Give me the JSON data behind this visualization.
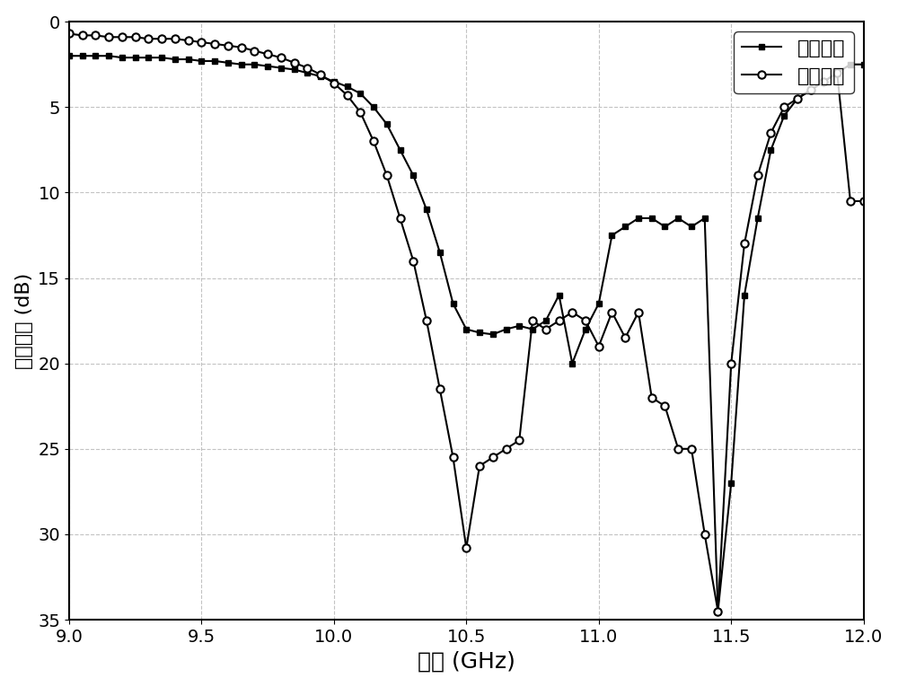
{
  "xlabel": "频率 (GHz)",
  "ylabel": "回波损耗 (dB)",
  "xlim": [
    9.0,
    12.0
  ],
  "ylim": [
    35,
    0
  ],
  "xticks": [
    9.0,
    9.5,
    10.0,
    10.5,
    11.0,
    11.5,
    12.0
  ],
  "yticks": [
    0,
    5,
    10,
    15,
    20,
    25,
    30,
    35
  ],
  "legend_labels": [
    "测试结果",
    "仿真结果"
  ],
  "background_color": "#ffffff",
  "grid_color": "#aaaaaa",
  "line_color": "#000000",
  "measured_x": [
    9.0,
    9.05,
    9.1,
    9.15,
    9.2,
    9.25,
    9.3,
    9.35,
    9.4,
    9.45,
    9.5,
    9.55,
    9.6,
    9.65,
    9.7,
    9.75,
    9.8,
    9.85,
    9.9,
    9.95,
    10.0,
    10.05,
    10.1,
    10.15,
    10.2,
    10.25,
    10.3,
    10.35,
    10.4,
    10.45,
    10.5,
    10.55,
    10.6,
    10.65,
    10.7,
    10.75,
    10.8,
    10.85,
    10.9,
    10.95,
    11.0,
    11.05,
    11.1,
    11.15,
    11.2,
    11.25,
    11.3,
    11.35,
    11.4,
    11.45,
    11.5,
    11.55,
    11.6,
    11.65,
    11.7,
    11.75,
    11.8,
    11.85,
    11.9,
    11.95,
    12.0
  ],
  "measured_y": [
    2.0,
    2.0,
    2.0,
    2.0,
    2.1,
    2.1,
    2.1,
    2.1,
    2.2,
    2.2,
    2.3,
    2.3,
    2.4,
    2.5,
    2.5,
    2.6,
    2.7,
    2.8,
    3.0,
    3.2,
    3.5,
    3.8,
    4.2,
    5.0,
    6.0,
    7.5,
    9.0,
    11.0,
    13.5,
    16.5,
    18.0,
    18.2,
    18.3,
    18.0,
    17.8,
    18.0,
    17.5,
    16.0,
    20.0,
    18.0,
    16.5,
    12.5,
    12.0,
    11.5,
    11.5,
    12.0,
    11.5,
    12.0,
    11.5,
    34.5,
    27.0,
    16.0,
    11.5,
    7.5,
    5.5,
    4.5,
    4.0,
    3.5,
    3.0,
    2.5,
    2.5
  ],
  "simulated_x": [
    9.0,
    9.05,
    9.1,
    9.15,
    9.2,
    9.25,
    9.3,
    9.35,
    9.4,
    9.45,
    9.5,
    9.55,
    9.6,
    9.65,
    9.7,
    9.75,
    9.8,
    9.85,
    9.9,
    9.95,
    10.0,
    10.05,
    10.1,
    10.15,
    10.2,
    10.25,
    10.3,
    10.35,
    10.4,
    10.45,
    10.5,
    10.55,
    10.6,
    10.65,
    10.7,
    10.75,
    10.8,
    10.85,
    10.9,
    10.95,
    11.0,
    11.05,
    11.1,
    11.15,
    11.2,
    11.25,
    11.3,
    11.35,
    11.4,
    11.45,
    11.5,
    11.55,
    11.6,
    11.65,
    11.7,
    11.75,
    11.8,
    11.85,
    11.9,
    11.95,
    12.0
  ],
  "simulated_y": [
    0.7,
    0.8,
    0.8,
    0.9,
    0.9,
    0.9,
    1.0,
    1.0,
    1.0,
    1.1,
    1.2,
    1.3,
    1.4,
    1.5,
    1.7,
    1.9,
    2.1,
    2.4,
    2.7,
    3.1,
    3.6,
    4.3,
    5.3,
    7.0,
    9.0,
    11.5,
    14.0,
    17.5,
    21.5,
    25.5,
    30.8,
    26.0,
    25.5,
    25.0,
    24.5,
    17.5,
    18.0,
    17.5,
    17.0,
    17.5,
    19.0,
    17.0,
    18.5,
    17.0,
    22.0,
    22.5,
    25.0,
    25.0,
    30.0,
    34.5,
    20.0,
    13.0,
    9.0,
    6.5,
    5.0,
    4.5,
    4.0,
    3.5,
    3.0,
    10.5,
    10.5
  ],
  "xlabel_fontsize": 18,
  "ylabel_fontsize": 16,
  "tick_fontsize": 14,
  "legend_fontsize": 16
}
